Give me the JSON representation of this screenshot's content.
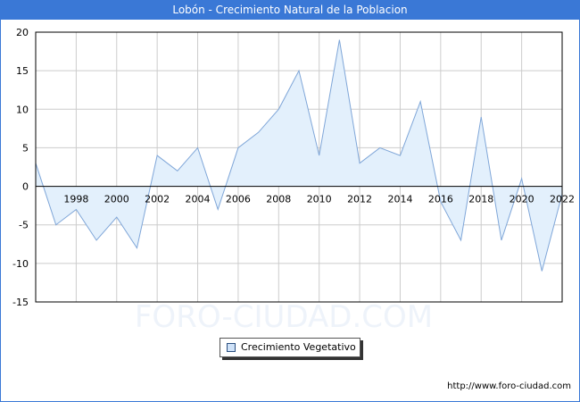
{
  "header": {
    "title": "Lobón - Crecimiento Natural de la Poblacion"
  },
  "watermark": "FORO-CIUDAD.COM",
  "footer": {
    "url": "http://www.foro-ciudad.com"
  },
  "colors": {
    "title_bar": "#3a78d6",
    "area_fill": "#e3f0fc",
    "line": "#7fa6d8",
    "grid": "#cccccc"
  },
  "chart_data": {
    "type": "area",
    "title": "Lobón - Crecimiento Natural de la Poblacion",
    "xlabel": "",
    "ylabel": "",
    "x": [
      1996,
      1997,
      1998,
      1999,
      2000,
      2001,
      2002,
      2003,
      2004,
      2005,
      2006,
      2007,
      2008,
      2009,
      2010,
      2011,
      2012,
      2013,
      2014,
      2015,
      2016,
      2017,
      2018,
      2019,
      2020,
      2021,
      2022
    ],
    "series": [
      {
        "name": "Crecimiento Vegetativo",
        "values": [
          3,
          -5,
          -3,
          -7,
          -4,
          -8,
          4,
          2,
          5,
          -3,
          5,
          7,
          10,
          15,
          4,
          19,
          3,
          5,
          4,
          11,
          -2,
          -7,
          9,
          -7,
          1,
          -11,
          -1
        ]
      }
    ],
    "xticks": [
      1998,
      2000,
      2002,
      2004,
      2006,
      2008,
      2010,
      2012,
      2014,
      2016,
      2018,
      2020,
      2022
    ],
    "xlim": [
      1996,
      2022
    ],
    "yticks": [
      20,
      15,
      10,
      5,
      0,
      -5,
      -10,
      -15
    ],
    "ylim": [
      -15,
      20
    ],
    "grid": true,
    "legend": "bottom-center"
  }
}
